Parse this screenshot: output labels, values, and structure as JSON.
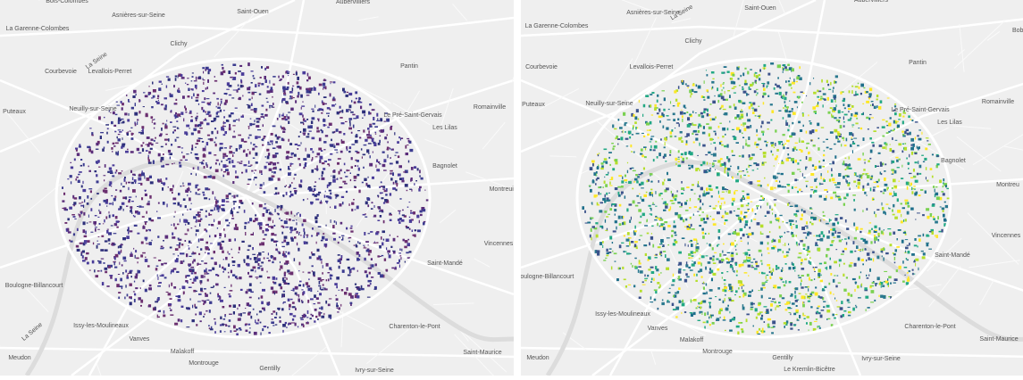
{
  "left_map": {
    "labels": [
      "Bois-Colombes",
      "Aubervilliers",
      "Asnières-sur-Seine",
      "Saint-Ouen",
      "La Garenne-Colombes",
      "Clichy",
      "Courbevoie",
      "Levallois-Perret",
      "Pantin",
      "Puteaux",
      "Neuilly-sur-Seine",
      "Le Pré-Saint-Gervais",
      "Romainville",
      "Les Lilas",
      "Bagnolet",
      "Montreuil",
      "Vincennes",
      "Saint-Mandé",
      "Boulogne-Billancourt",
      "Issy-les-Moulineaux",
      "Charenton-le-Pont",
      "Vanves",
      "Malakoff",
      "Saint-Maurice",
      "Montrouge",
      "Meudon",
      "Gentilly",
      "Ivry-sur-Seine",
      "La Seine",
      "La Seine"
    ]
  },
  "right_map": {
    "labels": [
      "Aubervilliers",
      "Asnières-sur-Seine",
      "Saint-Ouen",
      "Bobi",
      "La Garenne-Colombes",
      "Clichy",
      "Courbevoie",
      "Levallois-Perret",
      "Pantin",
      "Puteaux",
      "Neuilly-sur-Seine",
      "Le Pré-Saint-Gervais",
      "Romainville",
      "Les Lilas",
      "Bagnolet",
      "Montreu",
      "Vincennes",
      "Saint-Mandé",
      "Boulogne-Billancourt",
      "Issy-les-Moulineaux",
      "Charenton-le-Pont",
      "Vanves",
      "Malakoff",
      "Saint-Maurice",
      "Montrouge",
      "Meudon",
      "Gentilly",
      "Le Kremlin-Bicêtre",
      "Ivry-sur-Seine",
      "La Seine"
    ]
  }
}
